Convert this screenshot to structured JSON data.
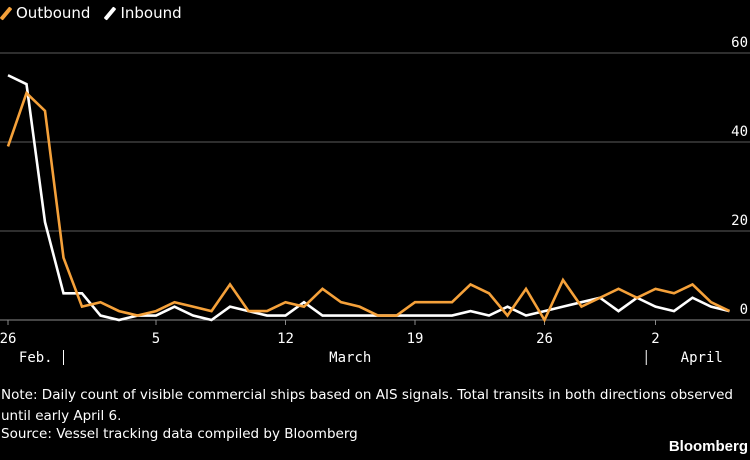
{
  "legend": {
    "outbound_label": "Outbound",
    "inbound_label": "Inbound"
  },
  "note": "Note: Daily count of visible commercial ships based on AIS signals. Total transits in both directions observed until early April 6.",
  "source": "Source: Vessel tracking data compiled by Bloomberg",
  "brand": "Bloomberg",
  "colors": {
    "background": "#000000",
    "outbound": "#f5a13a",
    "inbound": "#ffffff",
    "grid": "#5c5c5c",
    "text": "#ffffff"
  },
  "chart_data": {
    "type": "line",
    "title": "",
    "xlabel": "",
    "ylabel": "",
    "ylim": [
      0,
      60
    ],
    "yticks": [
      0,
      20,
      40,
      60
    ],
    "x_start": "Feb 26",
    "x_end": "Apr 5",
    "x_tick_labels": [
      {
        "label": "26",
        "day": 0
      },
      {
        "label": "5",
        "day": 8
      },
      {
        "label": "12",
        "day": 15
      },
      {
        "label": "19",
        "day": 22
      },
      {
        "label": "26",
        "day": 29
      },
      {
        "label": "2",
        "day": 35
      }
    ],
    "month_labels": [
      {
        "label": "Feb.",
        "day": 1.5
      },
      {
        "label": "March",
        "day": 18.5
      },
      {
        "label": "April",
        "day": 37.5
      }
    ],
    "month_dividers": [
      3,
      34.5
    ],
    "grid": true,
    "legend_position": "top-left",
    "series": [
      {
        "name": "Outbound",
        "color": "#f5a13a",
        "values": [
          39,
          51,
          47,
          14,
          3,
          4,
          2,
          1,
          2,
          4,
          3,
          2,
          8,
          2,
          2,
          4,
          3,
          7,
          4,
          3,
          1,
          1,
          4,
          4,
          4,
          8,
          6,
          1,
          7,
          0,
          9,
          3,
          5,
          7,
          5,
          7,
          6,
          8,
          4,
          2
        ]
      },
      {
        "name": "Inbound",
        "color": "#ffffff",
        "values": [
          55,
          53,
          22,
          6,
          6,
          1,
          0,
          1,
          1,
          3,
          1,
          0,
          3,
          2,
          1,
          1,
          4,
          1,
          1,
          1,
          1,
          1,
          1,
          1,
          1,
          2,
          1,
          3,
          1,
          2,
          3,
          4,
          5,
          2,
          5,
          3,
          2,
          5,
          3,
          2
        ]
      }
    ]
  }
}
